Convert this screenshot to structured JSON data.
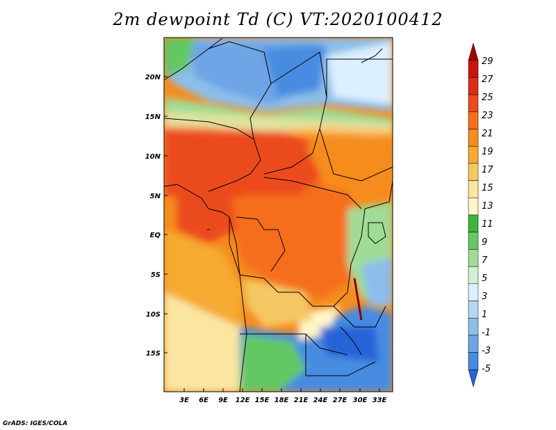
{
  "title": "2m dewpoint Td (C) VT:2020100412",
  "credit": "GrADS: IGES/COLA",
  "axes": {
    "lat_labels": [
      "20N",
      "15N",
      "10N",
      "5N",
      "EQ",
      "5S",
      "10S",
      "15S"
    ],
    "lon_labels": [
      "3E",
      "6E",
      "9E",
      "12E",
      "15E",
      "18E",
      "21E",
      "24E",
      "27E",
      "30E",
      "33E"
    ]
  },
  "colorbar": {
    "labels": [
      "29",
      "27",
      "25",
      "23",
      "21",
      "19",
      "17",
      "15",
      "13",
      "11",
      "9",
      "7",
      "5",
      "3",
      "1",
      "-1",
      "-3",
      "-5"
    ],
    "colors": [
      "#a50000",
      "#c8140a",
      "#dc2d14",
      "#eb4b1e",
      "#f56e1e",
      "#f58c1e",
      "#f5aa32",
      "#f5c864",
      "#fae6a0",
      "#fff6c8",
      "#3cb43c",
      "#64c864",
      "#a0dc96",
      "#d2f0d2",
      "#dcf0ff",
      "#b4d7f5",
      "#8cbeeb",
      "#6ea5e6",
      "#468ce1",
      "#2864d7"
    ]
  },
  "field_colors": {
    "ocean_south": "#fae6a0",
    "ocean_atlantic": "#f5aa32",
    "sahara": "#6ea5e6",
    "sahel": "#a0dc96",
    "west_africa": "#eb4b1e",
    "central": "#f56e1e",
    "south_plateau": "#468ce1",
    "great_lakes": "#a0dc96"
  }
}
